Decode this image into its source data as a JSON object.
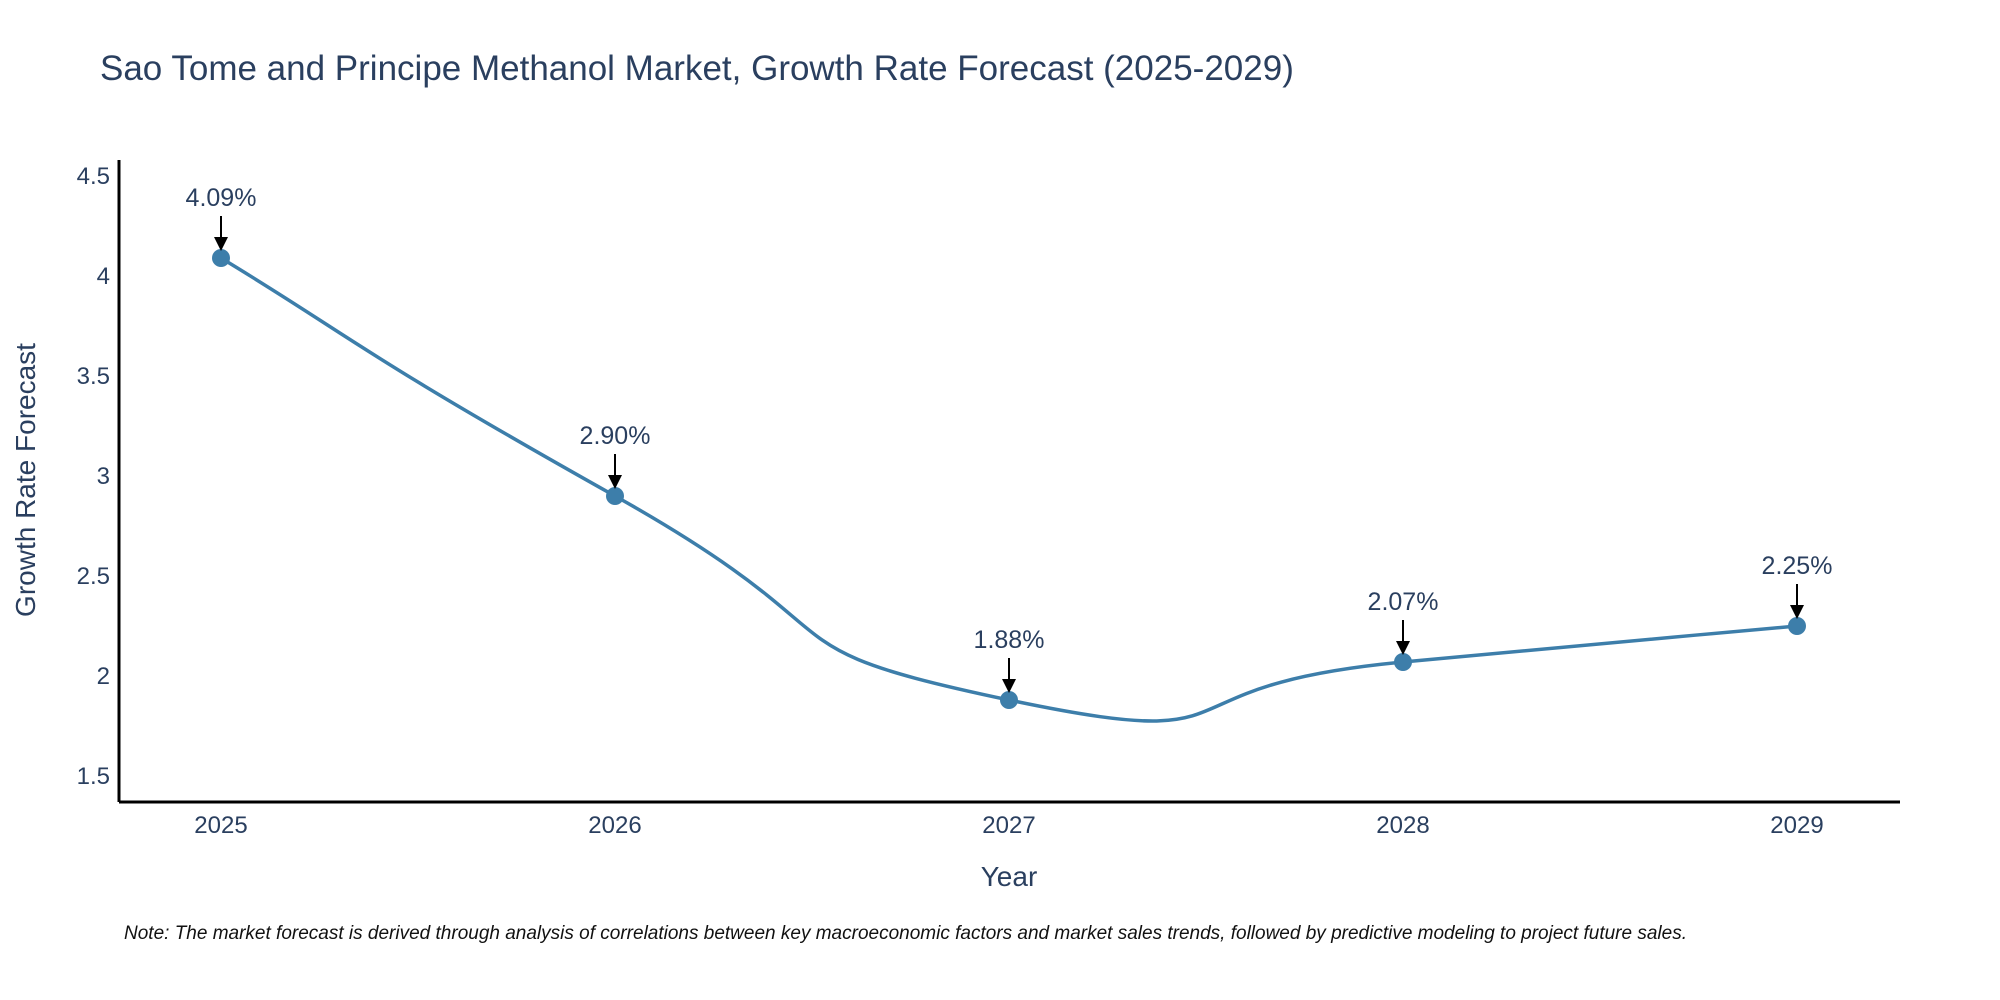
{
  "chart_data": {
    "type": "line",
    "title": "Sao Tome and Principe Methanol Market, Growth Rate Forecast (2025-2029)",
    "xlabel": "Year",
    "ylabel": "Growth Rate Forecast",
    "categories": [
      "2025",
      "2026",
      "2027",
      "2028",
      "2029"
    ],
    "series": [
      {
        "name": "Growth Rate Forecast",
        "values": [
          4.09,
          2.9,
          1.88,
          2.07,
          2.25
        ],
        "labels": [
          "4.09%",
          "2.90%",
          "1.88%",
          "2.07%",
          "2.25%"
        ],
        "color": "#3d7eaa"
      }
    ],
    "ylim": [
      1.37,
      4.58
    ],
    "y_ticks": [
      1.5,
      2,
      2.5,
      3,
      3.5,
      4,
      4.5
    ],
    "y_tick_labels": [
      "1.5",
      "2",
      "2.5",
      "3",
      "3.5",
      "4",
      "4.5"
    ],
    "grid": false,
    "note": "Note: The market forecast is derived through analysis of correlations between key macroeconomic factors and market sales trends, followed by predictive modeling to project future sales."
  }
}
